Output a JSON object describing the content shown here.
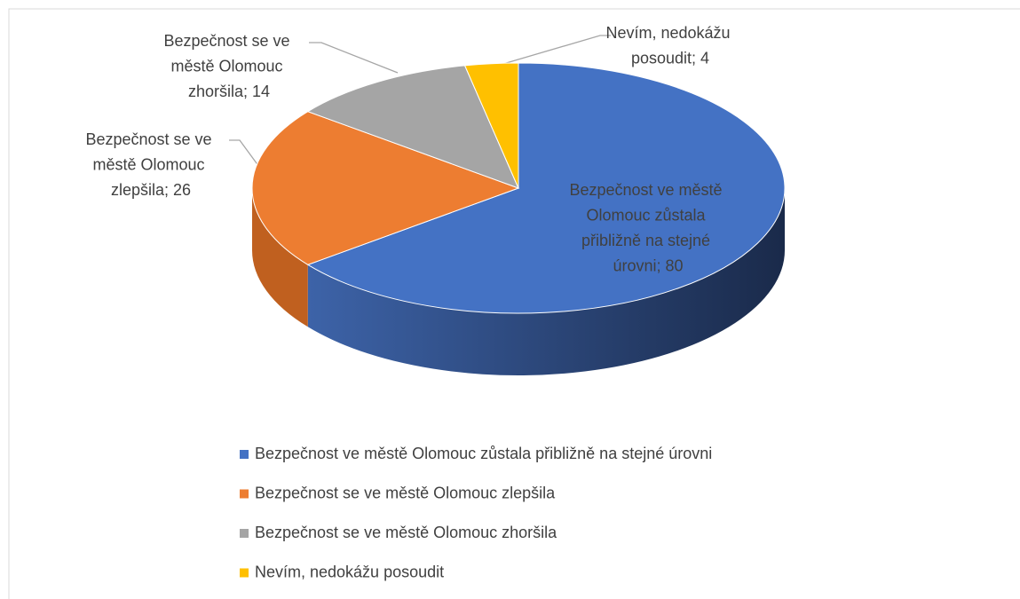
{
  "chart_data": {
    "type": "pie3d",
    "categories": [
      "Bezpečnost ve městě Olomouc zůstala přibližně na stejné úrovni",
      "Bezpečnost se ve městě Olomouc zlepšila",
      "Bezpečnost se ve městě Olomouc zhoršila",
      "Nevím, nedokážu posoudit"
    ],
    "values": [
      80,
      26,
      14,
      4
    ],
    "value_labels": [
      "Bezpečnost ve městě Olomouc zůstala přibližně na stejné úrovni; 80",
      "Bezpečnost se ve městě Olomouc zlepšila; 26",
      "Bezpečnost se ve městě Olomouc zhoršila; 14",
      "Nevím, nedokážu posoudit; 4"
    ],
    "colors": [
      "#4472c4",
      "#ed7d31",
      "#a5a5a5",
      "#ffc000"
    ],
    "legend": "bottom"
  }
}
